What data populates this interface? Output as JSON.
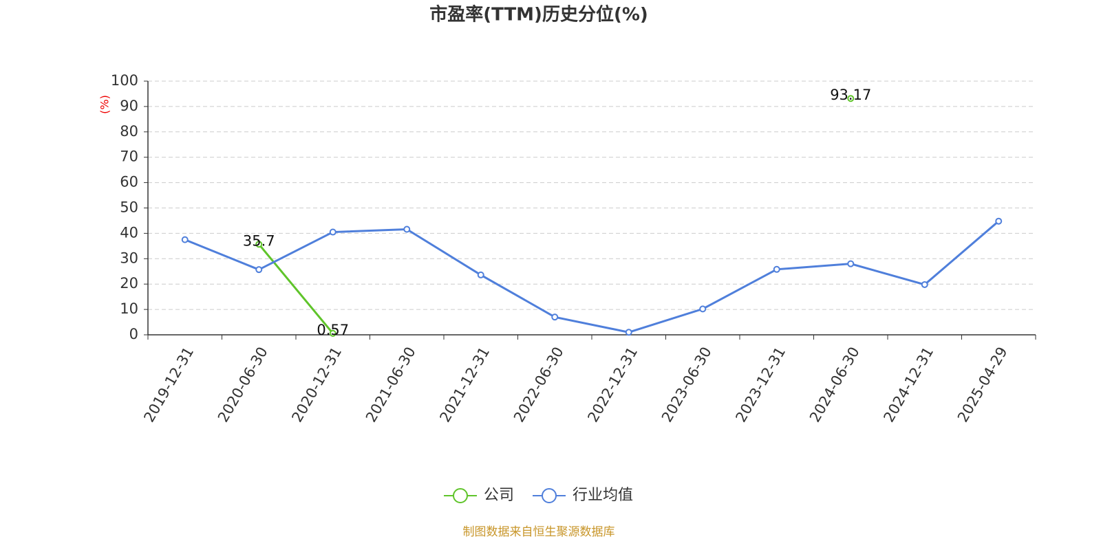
{
  "chart_data": {
    "type": "line",
    "title": "市盈率(TTM)历史分位(%)",
    "y_label": "(%)",
    "source": "制图数据来自恒生聚源数据库",
    "categories": [
      "2019-12-31",
      "2020-06-30",
      "2020-12-31",
      "2021-06-30",
      "2021-12-31",
      "2022-06-30",
      "2022-12-31",
      "2023-06-30",
      "2023-12-31",
      "2024-06-30",
      "2024-12-31",
      "2025-04-29"
    ],
    "series": [
      {
        "name": "公司",
        "color": "#5fc42a",
        "labels": true,
        "values": [
          null,
          35.7,
          0.57,
          null,
          null,
          null,
          null,
          null,
          null,
          93.17,
          null,
          null
        ]
      },
      {
        "name": "行业均值",
        "color": "#4f7fdb",
        "labels": false,
        "values": [
          37.5,
          25.7,
          40.5,
          41.6,
          23.6,
          7,
          1,
          10.2,
          25.8,
          28,
          19.8,
          44.8
        ]
      }
    ],
    "ylim": [
      0,
      100
    ],
    "yticks": [
      0,
      10,
      20,
      30,
      40,
      50,
      60,
      70,
      80,
      90,
      100
    ],
    "grid": true,
    "legend": "bottom"
  }
}
